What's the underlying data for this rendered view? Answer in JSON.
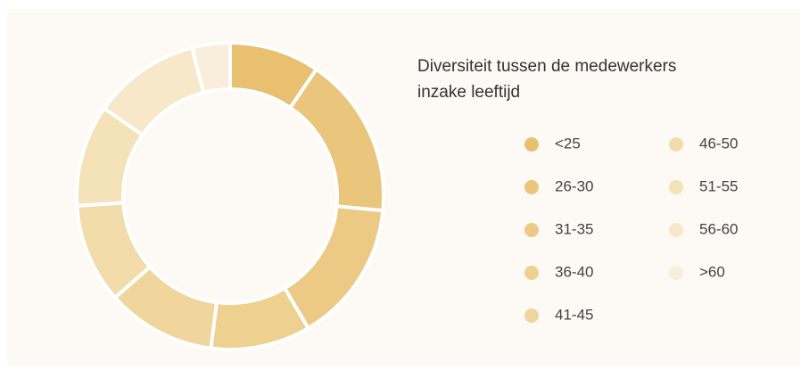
{
  "chart_data": {
    "type": "donut",
    "title": "Diversiteit tussen de medewerkers inzake leeftijd",
    "categories": [
      "<25",
      "26-30",
      "31-35",
      "36-40",
      "41-45",
      "46-50",
      "51-55",
      "56-60",
      ">60"
    ],
    "values": [
      9.5,
      17,
      15,
      10.5,
      11.5,
      10.5,
      10.7,
      11.3,
      4
    ],
    "colors": [
      "#e8c070",
      "#eac57c",
      "#ecca85",
      "#eed08f",
      "#f0d69c",
      "#f2dcaa",
      "#f4e2b9",
      "#f6e8c9",
      "#f8eedb"
    ]
  }
}
